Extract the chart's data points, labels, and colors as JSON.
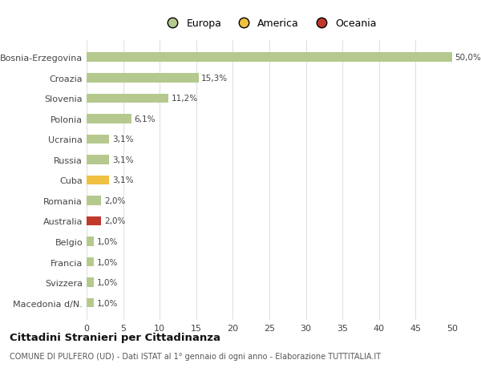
{
  "countries": [
    "Macedonia d/N.",
    "Svizzera",
    "Francia",
    "Belgio",
    "Australia",
    "Romania",
    "Cuba",
    "Russia",
    "Ucraina",
    "Polonia",
    "Slovenia",
    "Croazia",
    "Bosnia-Erzegovina"
  ],
  "values": [
    1.0,
    1.0,
    1.0,
    1.0,
    2.0,
    2.0,
    3.1,
    3.1,
    3.1,
    6.1,
    11.2,
    15.3,
    50.0
  ],
  "labels": [
    "1,0%",
    "1,0%",
    "1,0%",
    "1,0%",
    "2,0%",
    "2,0%",
    "3,1%",
    "3,1%",
    "3,1%",
    "6,1%",
    "11,2%",
    "15,3%",
    "50,0%"
  ],
  "colors": [
    "#b5c98e",
    "#b5c98e",
    "#b5c98e",
    "#b5c98e",
    "#c0392b",
    "#b5c98e",
    "#f0c040",
    "#b5c98e",
    "#b5c98e",
    "#b5c98e",
    "#b5c98e",
    "#b5c98e",
    "#b5c98e"
  ],
  "legend": [
    {
      "label": "Europa",
      "color": "#b5c98e"
    },
    {
      "label": "America",
      "color": "#f0c040"
    },
    {
      "label": "Oceania",
      "color": "#c0392b"
    }
  ],
  "title": "Cittadini Stranieri per Cittadinanza",
  "subtitle": "COMUNE DI PULFERO (UD) - Dati ISTAT al 1° gennaio di ogni anno - Elaborazione TUTTITALIA.IT",
  "xlim": [
    0,
    50
  ],
  "xticks": [
    0,
    5,
    10,
    15,
    20,
    25,
    30,
    35,
    40,
    45,
    50
  ],
  "background_color": "#ffffff",
  "grid_color": "#e0e0e0",
  "bar_height": 0.45
}
